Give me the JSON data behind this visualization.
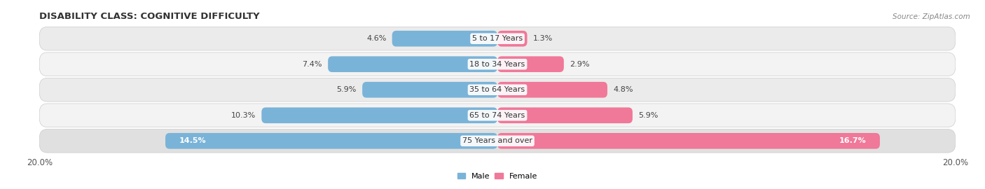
{
  "title": "DISABILITY CLASS: COGNITIVE DIFFICULTY",
  "source": "Source: ZipAtlas.com",
  "categories": [
    "5 to 17 Years",
    "18 to 34 Years",
    "35 to 64 Years",
    "65 to 74 Years",
    "75 Years and over"
  ],
  "male_values": [
    4.6,
    7.4,
    5.9,
    10.3,
    14.5
  ],
  "female_values": [
    1.3,
    2.9,
    4.8,
    5.9,
    16.7
  ],
  "max_value": 20.0,
  "male_color": "#7ab3d8",
  "female_color": "#f07898",
  "male_label": "Male",
  "female_label": "Female",
  "bar_height": 0.62,
  "row_bg_light": "#ebebeb",
  "row_bg_dark": "#e0e0e0",
  "title_fontsize": 9.5,
  "label_fontsize": 8.0,
  "tick_fontsize": 8.5,
  "source_fontsize": 7.5,
  "background_color": "#ffffff",
  "inside_label_threshold": 12.0
}
